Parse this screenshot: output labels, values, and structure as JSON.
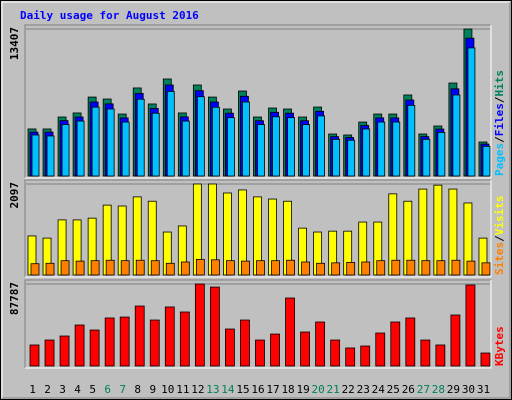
{
  "title": "Daily usage for August 2016",
  "legend_separator": "/",
  "categories": [
    "1",
    "2",
    "3",
    "4",
    "5",
    "6",
    "7",
    "8",
    "9",
    "10",
    "11",
    "12",
    "13",
    "14",
    "15",
    "16",
    "17",
    "18",
    "19",
    "20",
    "21",
    "22",
    "23",
    "24",
    "25",
    "26",
    "27",
    "28",
    "29",
    "30",
    "31"
  ],
  "category_colors": [
    "#000000",
    "#000000",
    "#000000",
    "#000000",
    "#000000",
    "#00805c",
    "#00805c",
    "#000000",
    "#000000",
    "#000000",
    "#000000",
    "#000000",
    "#00805c",
    "#00805c",
    "#000000",
    "#000000",
    "#000000",
    "#000000",
    "#000000",
    "#00805c",
    "#00805c",
    "#000000",
    "#000000",
    "#000000",
    "#000000",
    "#000000",
    "#00805c",
    "#00805c",
    "#000000",
    "#000000",
    "#000000"
  ],
  "chart_data": [
    {
      "type": "bar",
      "ylim": [
        0,
        13407
      ],
      "yticks": [
        13407
      ],
      "series": [
        {
          "name": "Hits",
          "color": "#00805c",
          "values": [
            4290,
            4290,
            5380,
            5750,
            7200,
            7020,
            5650,
            8030,
            6570,
            8850,
            5750,
            8300,
            7200,
            6110,
            7750,
            5380,
            6200,
            6110,
            5380,
            6290,
            3830,
            3740,
            4920,
            5650,
            5650,
            7390,
            3830,
            4560,
            8480,
            13407,
            3100
          ]
        },
        {
          "name": "Files",
          "color": "#0000ff",
          "values": [
            4000,
            4010,
            5050,
            5380,
            6750,
            6580,
            5300,
            7530,
            6160,
            8300,
            5390,
            7780,
            6750,
            5730,
            7270,
            5040,
            5810,
            5730,
            5040,
            5900,
            3590,
            3510,
            4610,
            5300,
            5300,
            6930,
            3590,
            4280,
            7950,
            12570,
            2910
          ]
        },
        {
          "name": "Pages",
          "color": "#00c0ff",
          "values": [
            3740,
            3650,
            4690,
            5010,
            6280,
            6110,
            4920,
            7000,
            5720,
            7710,
            5010,
            7230,
            6270,
            5320,
            6750,
            4690,
            5400,
            5320,
            4690,
            5480,
            3340,
            3260,
            4290,
            4920,
            4920,
            6440,
            3340,
            3970,
            7390,
            11680,
            2700
          ]
        }
      ]
    },
    {
      "type": "bar",
      "ylim": [
        0,
        2097
      ],
      "yticks": [
        2097
      ],
      "series": [
        {
          "name": "Visits",
          "color": "#ffff00",
          "values": [
            900,
            850,
            1270,
            1270,
            1310,
            1610,
            1590,
            1800,
            1700,
            990,
            1130,
            2097,
            2097,
            1890,
            1960,
            1800,
            1750,
            1700,
            1080,
            990,
            1010,
            1010,
            1220,
            1220,
            1870,
            1700,
            1980,
            2070,
            1980,
            1660,
            850
          ]
        },
        {
          "name": "Sites",
          "color": "#ff8000",
          "values": [
            260,
            270,
            330,
            320,
            330,
            340,
            330,
            340,
            330,
            270,
            300,
            360,
            350,
            330,
            320,
            330,
            330,
            340,
            300,
            270,
            280,
            290,
            300,
            330,
            340,
            340,
            330,
            330,
            340,
            320,
            280
          ]
        }
      ]
    },
    {
      "type": "bar",
      "ylim": [
        0,
        87787
      ],
      "yticks": [
        87787
      ],
      "series": [
        {
          "name": "KBytes",
          "color": "#ff0000",
          "values": [
            22500,
            27800,
            32100,
            43900,
            38500,
            51400,
            52400,
            64200,
            49200,
            63200,
            57800,
            87787,
            84500,
            39600,
            49200,
            27800,
            34200,
            72800,
            36400,
            47100,
            27800,
            19300,
            21400,
            35300,
            47100,
            51400,
            27800,
            22500,
            54600,
            86700,
            13900
          ]
        }
      ]
    }
  ]
}
